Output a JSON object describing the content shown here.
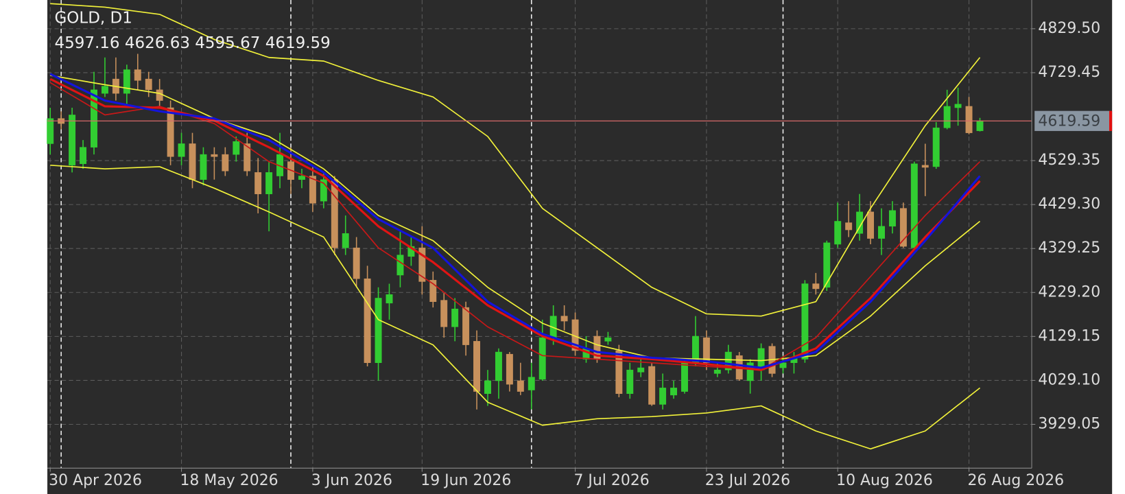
{
  "chart_data": {
    "type": "candlestick",
    "title": "GOLD, D1",
    "categories": [
      "30 Apr 2026",
      null,
      null,
      null,
      null,
      null,
      null,
      null,
      null,
      null,
      null,
      null,
      "18 May 2026",
      null,
      null,
      null,
      null,
      null,
      null,
      null,
      null,
      null,
      null,
      null,
      "3 Jun 2026",
      null,
      null,
      null,
      null,
      null,
      null,
      null,
      null,
      null,
      "19 Jun 2026",
      null,
      null,
      null,
      null,
      null,
      null,
      null,
      null,
      null,
      null,
      null,
      null,
      null,
      "7 Jul 2026",
      null,
      null,
      null,
      null,
      null,
      null,
      null,
      null,
      null,
      null,
      null,
      "23 Jul 2026",
      null,
      null,
      null,
      null,
      null,
      null,
      null,
      null,
      null,
      null,
      null,
      "10 Aug 2026",
      null,
      null,
      null,
      null,
      null,
      null,
      null,
      null,
      null,
      null,
      null,
      "26 Aug 2026",
      null
    ],
    "open": [
      4567.8,
      4625.2,
      4518.8,
      4522.1,
      4559.7,
      4682.3,
      4715.1,
      4682.3,
      4736.3,
      4715.1,
      4690.5,
      4649.7,
      4538.4,
      4567.8,
      4486.1,
      4543.3,
      4543.3,
      4543.3,
      4567.8,
      4502.4,
      4453.4,
      4494.3,
      4527.0,
      4486.1,
      4494.3,
      4437.1,
      4486.1,
      4330.8,
      4330.8,
      4260.5,
      4069.2,
      4204.9,
      4268.7,
      4311.2,
      4330.8,
      4257.2,
      4211.5,
      4151.0,
      4195.1,
      4118.2,
      3998.9,
      4028.3,
      4088.8,
      4028.3,
      4007.1,
      4031.6,
      4126.4,
      4175.5,
      4167.3,
      4077.4,
      4129.7,
      4118.2,
      4097.0,
      3998.9,
      4048.0,
      4061.0,
      3974.4,
      3995.6,
      4003.8,
      4069.2,
      4126.4,
      4044.7,
      4052.9,
      4085.5,
      4028.3,
      4052.9,
      4106.8,
      4057.8,
      4069.2,
      4077.4,
      4249.1,
      4240.9,
      4339.0,
      4388.0,
      4363.5,
      4412.6,
      4352.1,
      4379.9,
      4420.7,
      4330.8,
      4518.8,
      4515.5,
      4603.9,
      4649.7,
      4652.9,
      4597.16
    ],
    "high": [
      4649.7,
      4641.5,
      4649.7,
      4576.1,
      4731.4,
      4764.1,
      4764.1,
      4747.7,
      4772.3,
      4731.4,
      4715.1,
      4666.0,
      4592.5,
      4592.5,
      4559.7,
      4559.7,
      4559.7,
      4584.3,
      4592.5,
      4535.2,
      4527.0,
      4592.5,
      4559.7,
      4510.6,
      4518.8,
      4502.4,
      4494.3,
      4404.4,
      4355.3,
      4289.9,
      4240.9,
      4249.1,
      4371.7,
      4355.3,
      4379.9,
      4276.8,
      4227.8,
      4216.4,
      4208.2,
      4142.8,
      4052.9,
      4101.9,
      4093.7,
      4069.2,
      4069.2,
      4167.3,
      4200.0,
      4200.0,
      4183.6,
      4129.7,
      4142.8,
      4139.5,
      4110.0,
      4069.2,
      4077.4,
      4069.2,
      4044.7,
      4028.3,
      4077.4,
      4175.5,
      4142.8,
      4069.2,
      4110.0,
      4093.7,
      4077.4,
      4113.3,
      4113.3,
      4085.5,
      4093.7,
      4257.2,
      4273.6,
      4347.2,
      4433.8,
      4437.1,
      4453.4,
      4437.1,
      4420.7,
      4437.1,
      4433.8,
      4527.0,
      4567.8,
      4617.0,
      4690.5,
      4695.4,
      4674.2,
      4626.63
    ],
    "low": [
      4543.3,
      4600.6,
      4502.4,
      4510.6,
      4543.3,
      4674.2,
      4666.0,
      4657.8,
      4690.5,
      4674.2,
      4649.7,
      4518.8,
      4518.8,
      4466.5,
      4473.0,
      4486.1,
      4494.3,
      4527.0,
      4494.3,
      4409.3,
      4368.4,
      4466.5,
      4453.4,
      4466.5,
      4412.6,
      4420.7,
      4314.5,
      4314.5,
      4240.9,
      4061.0,
      4028.3,
      4167.3,
      4240.9,
      4289.9,
      4224.5,
      4195.1,
      4126.4,
      4118.2,
      4085.5,
      3962.9,
      3971.1,
      3987.4,
      4003.8,
      3995.6,
      3962.9,
      4028.3,
      4110.0,
      4142.8,
      4085.5,
      4069.2,
      4069.2,
      4110.0,
      3990.7,
      3987.4,
      4036.5,
      3971.1,
      3962.9,
      3987.4,
      3998.9,
      4061.0,
      4052.9,
      4036.5,
      4044.7,
      4028.3,
      3998.9,
      4028.3,
      4036.5,
      4044.7,
      4044.7,
      4069.2,
      4224.5,
      4232.7,
      4330.8,
      4355.3,
      4347.2,
      4339.0,
      4314.5,
      4363.5,
      4330.8,
      4325.9,
      4448.5,
      4510.6,
      4600.6,
      4608.8,
      4589.2,
      4595.67
    ],
    "close": [
      4625.2,
      4613.7,
      4633.3,
      4559.7,
      4690.5,
      4698.7,
      4682.3,
      4736.3,
      4711.8,
      4690.5,
      4666.0,
      4538.4,
      4567.8,
      4486.1,
      4543.3,
      4538.4,
      4505.7,
      4572.8,
      4505.7,
      4453.4,
      4502.4,
      4543.3,
      4486.1,
      4494.3,
      4432.2,
      4486.1,
      4330.8,
      4363.5,
      4260.5,
      4069.2,
      4216.4,
      4224.5,
      4314.5,
      4334.1,
      4254.0,
      4208.2,
      4151.0,
      4191.8,
      4110.0,
      4003.8,
      4028.3,
      4093.7,
      4020.2,
      4003.8,
      4036.5,
      4126.4,
      4175.5,
      4164.0,
      4097.0,
      4101.9,
      4077.4,
      4126.4,
      3998.9,
      4052.9,
      4057.8,
      3974.4,
      4012.0,
      4012.0,
      4069.2,
      4129.7,
      4069.2,
      4052.9,
      4093.7,
      4031.6,
      4069.2,
      4101.9,
      4044.7,
      4069.2,
      4080.6,
      4249.1,
      4237.6,
      4342.3,
      4391.3,
      4371.7,
      4412.6,
      4352.1,
      4379.9,
      4415.8,
      4334.1,
      4522.1,
      4513.9,
      4603.9,
      4652.9,
      4657.8,
      4592.5,
      4619.59
    ],
    "up_color": "#32cd32",
    "down_color": "#c8915c",
    "ylim": [
      3829.36,
      4894.87
    ],
    "yticks": [
      {
        "value": 4829.5,
        "label": "4829.50"
      },
      4729.45,
      4529.35,
      {
        "value": 4429.3,
        "label": "4429.30"
      },
      4329.25,
      {
        "value": 4229.2,
        "label": "4229.20"
      },
      4129.15,
      {
        "value": 4029.1,
        "label": "4029.10"
      },
      3929.05
    ],
    "grid": true,
    "period_separators": [
      1,
      22,
      44,
      67
    ],
    "price_line_color": "#d86a6a",
    "price_label_color": "#8a96a2",
    "indicators": {
      "x": [
        0,
        5,
        10,
        15,
        20,
        25,
        30,
        35,
        40,
        45,
        50,
        55,
        60,
        65,
        70,
        75,
        80,
        85
      ],
      "series": [
        {
          "color": "#f2f23a",
          "line_style": "thin",
          "values": [
            4886.7,
            4878.6,
            4862.2,
            4805.0,
            4764.1,
            4755.9,
            4711.8,
            4674.2,
            4584.3,
            4420.7,
            4330.8,
            4240.9,
            4180.5,
            4175.5,
            4208.2,
            4420.7,
            4608.8,
            4764.1
          ]
        },
        {
          "color": "#f2f23a",
          "line_style": "thin",
          "values": [
            4723.2,
            4702.0,
            4682.3,
            4625.2,
            4584.3,
            4510.6,
            4404.4,
            4347.2,
            4240.9,
            4159.2,
            4110.0,
            4080.6,
            4077.4,
            4074.2,
            4085.5,
            4175.5,
            4289.9,
            4391.3
          ]
        },
        {
          "color": "#f2f23a",
          "line_style": "thin",
          "values": [
            4518.8,
            4510.6,
            4515.5,
            4466.5,
            4412.6,
            4355.3,
            4167.3,
            4110.0,
            3979.4,
            3927.1,
            3941.8,
            3946.7,
            3954.9,
            3971.1,
            3914.0,
            3873.2,
            3914.0,
            4012.0
          ]
        },
        {
          "color": "#c81818",
          "line_style": "thin",
          "values": [
            4706.9,
            4633.3,
            4652.9,
            4613.7,
            4527.0,
            4478.0,
            4330.8,
            4249.1,
            4151.0,
            4085.5,
            4077.4,
            4069.2,
            4061.0,
            4052.9,
            4126.4,
            4265.5,
            4404.4,
            4527.0
          ]
        },
        {
          "color": "#e01414",
          "line_style": "thick",
          "values": [
            4715.1,
            4652.9,
            4649.7,
            4620.3,
            4559.7,
            4494.3,
            4379.9,
            4298.2,
            4200.0,
            4129.7,
            4085.5,
            4077.4,
            4066.0,
            4052.9,
            4101.9,
            4216.4,
            4355.3,
            4482.9
          ]
        },
        {
          "color": "#1414dc",
          "line_style": "thick",
          "values": [
            4726.5,
            4666.0,
            4641.5,
            4625.2,
            4576.1,
            4502.4,
            4396.2,
            4330.8,
            4208.2,
            4134.7,
            4093.7,
            4080.6,
            4072.6,
            4057.8,
            4093.7,
            4208.2,
            4347.2,
            4494.3
          ]
        }
      ]
    }
  }
}
